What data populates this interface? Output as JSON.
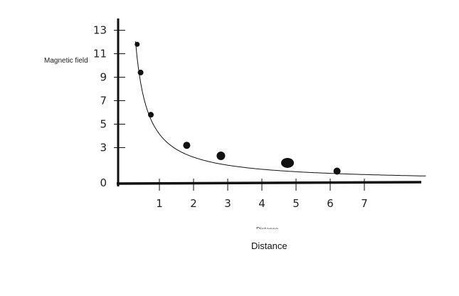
{
  "chart_data": {
    "type": "scatter",
    "title": "",
    "xlabel": "Distance",
    "xlabel_caption": "Distance",
    "ylabel": "Magnetic field",
    "xlim": [
      0,
      7.5
    ],
    "ylim": [
      0,
      13.5
    ],
    "x_ticks": [
      1,
      2,
      3,
      4,
      5,
      6,
      7
    ],
    "y_ticks": [
      0,
      3,
      5,
      7,
      9,
      11,
      13
    ],
    "grid": false,
    "legend": "none",
    "series": [
      {
        "x": [
          0.35,
          0.45,
          0.75,
          1.8,
          2.8,
          4.75,
          6.2
        ],
        "y": [
          11.8,
          9.4,
          5.8,
          3.2,
          2.3,
          1.7,
          1.0
        ],
        "trend_curve": true
      }
    ],
    "colors": {
      "ink": "#111111"
    }
  }
}
